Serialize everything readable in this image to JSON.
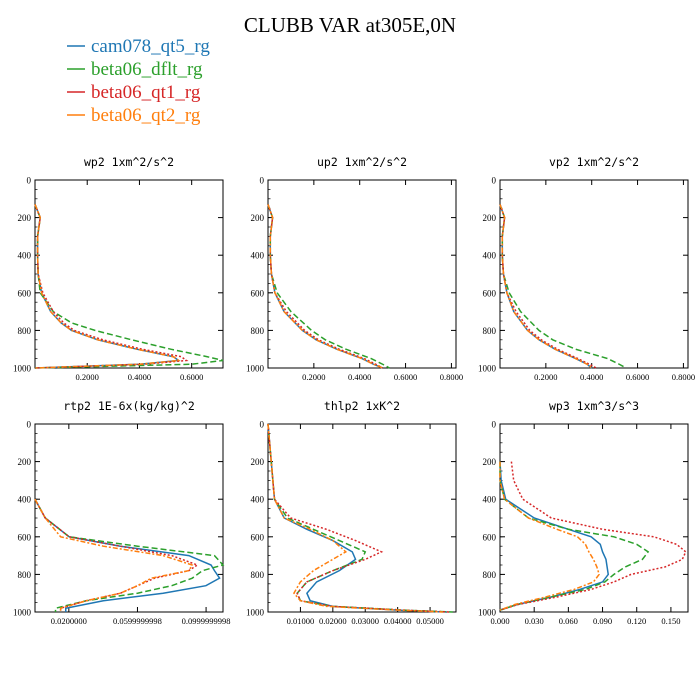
{
  "title": "CLUBB VAR at305E,0N",
  "legend": [
    {
      "label": "cam078_qt5_rg",
      "color": "#1f77b4"
    },
    {
      "label": "beta06_dflt_rg",
      "color": "#2ca02c"
    },
    {
      "label": "beta06_qt1_rg",
      "color": "#d62728"
    },
    {
      "label": "beta06_qt2_rg",
      "color": "#ff7f0e"
    }
  ],
  "chart_data": [
    {
      "type": "line",
      "title": "wp2  1xm^2/s^2",
      "xlim": [
        0,
        0.72
      ],
      "ylim": [
        1000,
        0
      ],
      "yticks": [
        "0",
        "200",
        "400",
        "600",
        "800",
        "1000"
      ],
      "xticks": [
        "0.2000",
        "0.4000",
        "0.6000"
      ],
      "y": [
        130,
        200,
        300,
        400,
        500,
        600,
        700,
        760,
        800,
        850,
        900,
        940,
        960,
        980,
        1000
      ],
      "series": [
        {
          "name": "cam078_qt5_rg",
          "values": [
            0.0,
            0.02,
            0.01,
            0.01,
            0.012,
            0.025,
            0.06,
            0.1,
            0.14,
            0.24,
            0.39,
            0.53,
            0.55,
            0.4,
            0.0
          ]
        },
        {
          "name": "beta06_dflt_rg",
          "values": [
            0.0,
            0.02,
            0.01,
            0.01,
            0.012,
            0.02,
            0.07,
            0.14,
            0.23,
            0.37,
            0.52,
            0.66,
            0.72,
            0.6,
            0.0
          ]
        },
        {
          "name": "beta06_qt1_rg",
          "values": [
            0.0,
            0.02,
            0.01,
            0.01,
            0.012,
            0.03,
            0.07,
            0.11,
            0.15,
            0.26,
            0.41,
            0.56,
            0.58,
            0.42,
            0.0
          ]
        },
        {
          "name": "beta06_qt2_rg",
          "values": [
            0.0,
            0.02,
            0.01,
            0.01,
            0.012,
            0.025,
            0.06,
            0.1,
            0.14,
            0.24,
            0.39,
            0.53,
            0.55,
            0.4,
            0.0
          ]
        }
      ]
    },
    {
      "type": "line",
      "title": "up2  1xm^2/s^2",
      "xlim": [
        0,
        0.82
      ],
      "ylim": [
        1000,
        0
      ],
      "yticks": [
        "0",
        "200",
        "400",
        "600",
        "800",
        "1000"
      ],
      "xticks": [
        "0.2000",
        "0.4000",
        "0.6000",
        "0.8000"
      ],
      "y": [
        130,
        200,
        300,
        400,
        500,
        600,
        700,
        800,
        850,
        900,
        950,
        980,
        1000
      ],
      "series": [
        {
          "name": "cam078_qt5_rg",
          "values": [
            0.0,
            0.02,
            0.01,
            0.01,
            0.015,
            0.03,
            0.07,
            0.15,
            0.21,
            0.3,
            0.41,
            0.46,
            0.5
          ]
        },
        {
          "name": "beta06_dflt_rg",
          "values": [
            0.0,
            0.02,
            0.01,
            0.01,
            0.015,
            0.04,
            0.1,
            0.19,
            0.25,
            0.34,
            0.45,
            0.5,
            0.53
          ]
        },
        {
          "name": "beta06_qt1_rg",
          "values": [
            0.0,
            0.02,
            0.01,
            0.01,
            0.015,
            0.03,
            0.08,
            0.16,
            0.22,
            0.31,
            0.42,
            0.47,
            0.5
          ]
        },
        {
          "name": "beta06_qt2_rg",
          "values": [
            0.0,
            0.02,
            0.01,
            0.01,
            0.015,
            0.03,
            0.07,
            0.15,
            0.21,
            0.3,
            0.41,
            0.46,
            0.5
          ]
        }
      ]
    },
    {
      "type": "line",
      "title": "vp2  1xm^2/s^2",
      "xlim": [
        0,
        0.82
      ],
      "ylim": [
        1000,
        0
      ],
      "yticks": [
        "0",
        "200",
        "400",
        "600",
        "800",
        "1000"
      ],
      "xticks": [
        "0.2000",
        "0.4000",
        "0.6000",
        "0.8000"
      ],
      "y": [
        130,
        200,
        300,
        400,
        500,
        600,
        700,
        800,
        850,
        900,
        950,
        980,
        1000
      ],
      "series": [
        {
          "name": "cam078_qt5_rg",
          "values": [
            0.0,
            0.02,
            0.01,
            0.01,
            0.015,
            0.03,
            0.06,
            0.12,
            0.17,
            0.24,
            0.33,
            0.38,
            0.4
          ]
        },
        {
          "name": "beta06_dflt_rg",
          "values": [
            0.0,
            0.02,
            0.01,
            0.01,
            0.015,
            0.04,
            0.09,
            0.17,
            0.23,
            0.33,
            0.47,
            0.52,
            0.55
          ]
        },
        {
          "name": "beta06_qt1_rg",
          "values": [
            0.0,
            0.02,
            0.01,
            0.01,
            0.015,
            0.03,
            0.07,
            0.13,
            0.18,
            0.25,
            0.34,
            0.39,
            0.42
          ]
        },
        {
          "name": "beta06_qt2_rg",
          "values": [
            0.0,
            0.02,
            0.01,
            0.01,
            0.015,
            0.03,
            0.06,
            0.12,
            0.17,
            0.24,
            0.33,
            0.38,
            0.4
          ]
        }
      ]
    },
    {
      "type": "line",
      "title": "rtp2  1E-6x(kg/kg)^2",
      "xlim": [
        0,
        0.00011
      ],
      "ylim": [
        1000,
        0
      ],
      "yticks": [
        "0",
        "200",
        "400",
        "600",
        "800",
        "1000"
      ],
      "xticks": [
        "0.0200000",
        "0.0599999998",
        "0.0999999998"
      ],
      "y": [
        400,
        500,
        600,
        650,
        700,
        750,
        780,
        820,
        860,
        900,
        940,
        980,
        1000
      ],
      "series": [
        {
          "name": "cam078_qt5_rg",
          "values": [
            0.0,
            6e-06,
            2e-05,
            5e-05,
            9e-05,
            0.000103,
            0.000105,
            0.000108,
            0.0001,
            7.5e-05,
            4e-05,
            1.8e-05,
            1.8e-05
          ]
        },
        {
          "name": "beta06_dflt_rg",
          "values": [
            0.0,
            6e-06,
            2e-05,
            6e-05,
            0.000105,
            0.00011,
            9.8e-05,
            9.2e-05,
            8e-05,
            6e-05,
            3e-05,
            1.2e-05,
            1.2e-05
          ]
        },
        {
          "name": "beta06_qt1_rg",
          "values": [
            0.0,
            6e-06,
            2e-05,
            5e-05,
            8e-05,
            9.5e-05,
            9e-05,
            7e-05,
            6e-05,
            5e-05,
            3e-05,
            1.5e-05,
            1.5e-05
          ]
        },
        {
          "name": "beta06_qt2_rg",
          "values": [
            0.0,
            6e-06,
            1.5e-05,
            4e-05,
            7.5e-05,
            9.2e-05,
            9e-05,
            6.8e-05,
            6e-05,
            5e-05,
            3e-05,
            1.5e-05,
            1.5e-05
          ]
        }
      ]
    },
    {
      "type": "line",
      "title": "thlp2  1xK^2",
      "xlim": [
        0,
        0.058
      ],
      "ylim": [
        1000,
        0
      ],
      "yticks": [
        "0",
        "200",
        "400",
        "600",
        "800",
        "1000"
      ],
      "xticks": [
        "0.01000",
        "0.02000",
        "0.03000",
        "0.04000",
        "0.05000"
      ],
      "y": [
        0,
        200,
        400,
        500,
        560,
        620,
        680,
        720,
        780,
        840,
        900,
        940,
        970,
        990,
        1000
      ],
      "series": [
        {
          "name": "cam078_qt5_rg",
          "values": [
            0.0,
            0.001,
            0.002,
            0.005,
            0.012,
            0.02,
            0.026,
            0.027,
            0.022,
            0.015,
            0.012,
            0.013,
            0.02,
            0.04,
            0.055
          ]
        },
        {
          "name": "beta06_dflt_rg",
          "values": [
            0.0,
            0.001,
            0.002,
            0.006,
            0.014,
            0.022,
            0.03,
            0.029,
            0.02,
            0.012,
            0.009,
            0.01,
            0.02,
            0.042,
            0.057
          ]
        },
        {
          "name": "beta06_qt1_rg",
          "values": [
            0.0,
            0.001,
            0.002,
            0.007,
            0.018,
            0.027,
            0.035,
            0.03,
            0.02,
            0.012,
            0.009,
            0.01,
            0.02,
            0.042,
            0.056
          ]
        },
        {
          "name": "beta06_qt2_rg",
          "values": [
            0.0,
            0.001,
            0.002,
            0.005,
            0.013,
            0.02,
            0.024,
            0.02,
            0.014,
            0.01,
            0.008,
            0.01,
            0.018,
            0.04,
            0.054
          ]
        }
      ]
    },
    {
      "type": "line",
      "title": "wp3  1xm^3/s^3",
      "xlim": [
        0,
        0.165
      ],
      "ylim": [
        1000,
        0
      ],
      "yticks": [
        "0",
        "200",
        "400",
        "600",
        "800",
        "1000"
      ],
      "xticks": [
        "0.000",
        "0.030",
        "0.060",
        "0.090",
        "0.120",
        "0.150"
      ],
      "y": [
        200,
        300,
        400,
        500,
        560,
        600,
        640,
        680,
        720,
        760,
        800,
        840,
        880,
        920,
        960,
        990
      ],
      "series": [
        {
          "name": "cam078_qt5_rg",
          "values": [
            0.0,
            0.001,
            0.005,
            0.03,
            0.06,
            0.08,
            0.088,
            0.09,
            0.093,
            0.094,
            0.095,
            0.09,
            0.07,
            0.045,
            0.015,
            0.0
          ]
        },
        {
          "name": "beta06_dflt_rg",
          "values": [
            0.0,
            0.0,
            0.004,
            0.025,
            0.06,
            0.1,
            0.12,
            0.13,
            0.125,
            0.11,
            0.1,
            0.092,
            0.075,
            0.045,
            0.015,
            0.0
          ]
        },
        {
          "name": "beta06_qt1_rg",
          "values": [
            0.01,
            0.012,
            0.02,
            0.045,
            0.09,
            0.135,
            0.155,
            0.163,
            0.16,
            0.145,
            0.115,
            0.1,
            0.08,
            0.05,
            0.016,
            0.0
          ]
        },
        {
          "name": "beta06_qt2_rg",
          "values": [
            0.0,
            0.0,
            0.004,
            0.025,
            0.05,
            0.068,
            0.075,
            0.078,
            0.082,
            0.085,
            0.087,
            0.082,
            0.065,
            0.04,
            0.013,
            0.0
          ]
        }
      ]
    }
  ]
}
